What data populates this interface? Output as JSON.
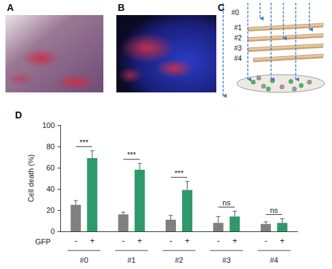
{
  "panels": [
    {
      "label": "A"
    },
    {
      "label": "B"
    },
    {
      "label": "C",
      "layers": [
        "#0",
        "#1",
        "#2",
        "#3",
        "#4"
      ]
    }
  ],
  "chart_data": {
    "type": "bar",
    "panel": "D",
    "categories": [
      "#0",
      "#1",
      "#2",
      "#3",
      "#4"
    ],
    "series_title": "GFP",
    "series": [
      {
        "name": "-",
        "color": "#808080",
        "values": [
          25,
          16,
          11,
          8,
          7
        ],
        "errors": [
          4,
          2,
          4,
          6,
          2
        ]
      },
      {
        "name": "+",
        "color": "#2e9a6b",
        "values": [
          69,
          58,
          39,
          14,
          8
        ],
        "errors": [
          7,
          6,
          8,
          5,
          4
        ]
      }
    ],
    "significance": [
      "***",
      "***",
      "***",
      "ns",
      "ns"
    ],
    "y_label": "Cell death (%)",
    "ylim": [
      0,
      100
    ],
    "yticks": [
      0,
      20,
      40,
      60,
      80,
      100
    ],
    "grid": false
  }
}
